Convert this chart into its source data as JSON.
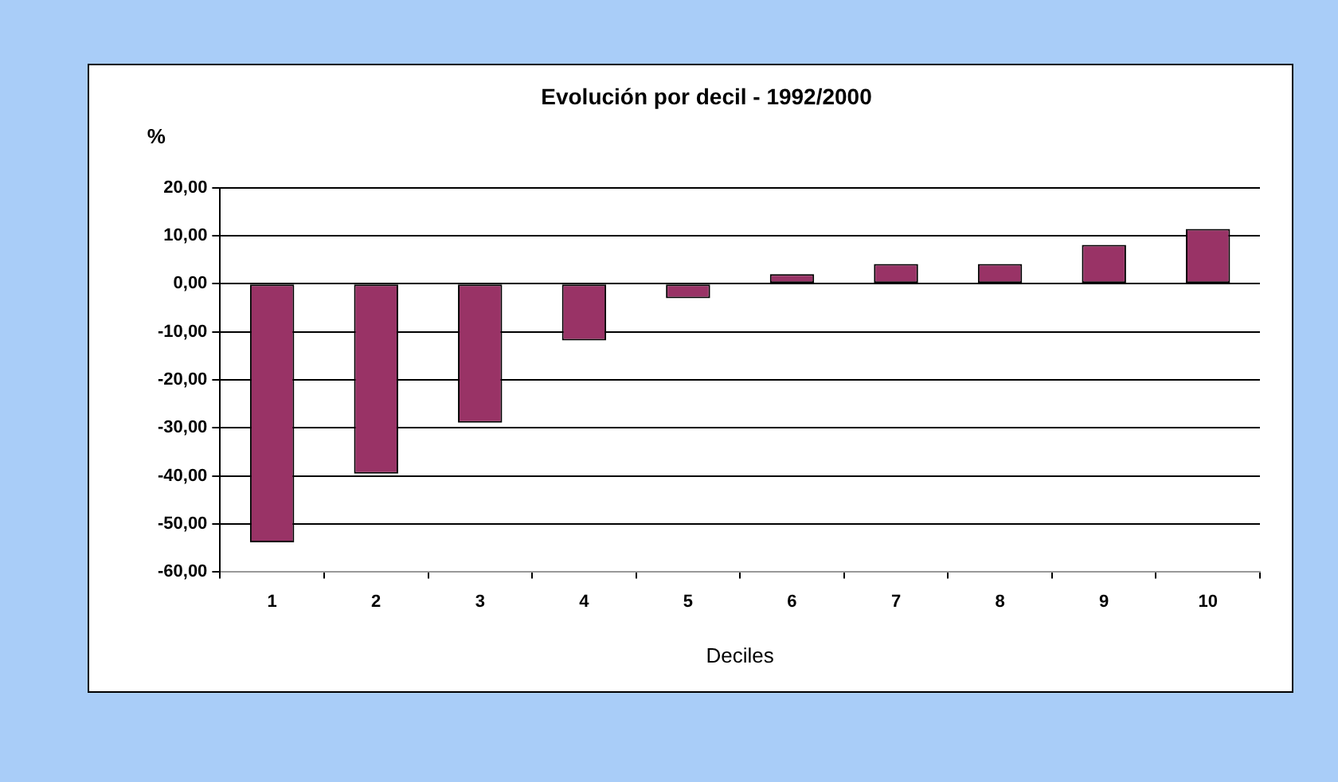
{
  "chart_data": {
    "type": "bar",
    "title": "Evolución por decil - 1992/2000",
    "ylabel": "%",
    "xlabel": "Deciles",
    "categories": [
      "1",
      "2",
      "3",
      "4",
      "5",
      "6",
      "7",
      "8",
      "9",
      "10"
    ],
    "values": [
      -53.8,
      -39.5,
      -28.9,
      -11.8,
      -3.0,
      2.0,
      4.1,
      4.1,
      8.1,
      11.4
    ],
    "color": "#993366",
    "ylim": [
      -60,
      20
    ],
    "yticks": [
      {
        "value": -60,
        "label": "-60,00"
      },
      {
        "value": -50,
        "label": "-50,00"
      },
      {
        "value": -40,
        "label": "-40,00"
      },
      {
        "value": -30,
        "label": "-30,00"
      },
      {
        "value": -20,
        "label": "-20,00"
      },
      {
        "value": -10,
        "label": "-10,00"
      },
      {
        "value": 0,
        "label": "0,00"
      },
      {
        "value": 10,
        "label": "10,00"
      },
      {
        "value": 20,
        "label": "20,00"
      }
    ],
    "grid": "y",
    "legend": false
  }
}
